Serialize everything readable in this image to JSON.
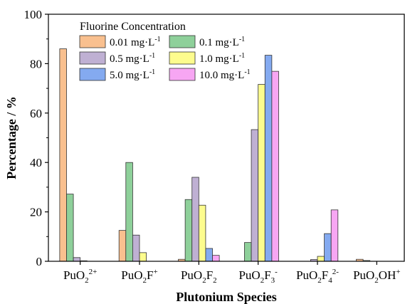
{
  "chart_data": {
    "type": "bar",
    "xlabel": "Plutonium Species",
    "ylabel": "Percentage / %",
    "ylim": [
      0,
      100
    ],
    "yticks": [
      0,
      20,
      40,
      60,
      80,
      100
    ],
    "grid": false,
    "legend_placement": "top-left",
    "legend_title": "Fluorine Concentration",
    "categories": [
      {
        "base": "PuO",
        "parts": [
          {
            "t": "2",
            "s": "sub"
          },
          {
            "t": "2+",
            "s": "sup"
          }
        ]
      },
      {
        "base": "PuO",
        "parts": [
          {
            "t": "2",
            "s": "sub"
          },
          {
            "t": "F",
            "s": "normal"
          },
          {
            "t": "+",
            "s": "sup"
          }
        ]
      },
      {
        "base": "PuO",
        "parts": [
          {
            "t": "2",
            "s": "sub"
          },
          {
            "t": "F",
            "s": "normal"
          },
          {
            "t": "2",
            "s": "sub"
          }
        ]
      },
      {
        "base": "PuO",
        "parts": [
          {
            "t": "2",
            "s": "sub"
          },
          {
            "t": "F",
            "s": "normal"
          },
          {
            "t": "3",
            "s": "sub"
          },
          {
            "t": "-",
            "s": "sup"
          }
        ]
      },
      {
        "base": "PuO",
        "parts": [
          {
            "t": "2",
            "s": "sub"
          },
          {
            "t": "F",
            "s": "normal"
          },
          {
            "t": "4",
            "s": "sub"
          },
          {
            "t": "2-",
            "s": "sup"
          }
        ]
      },
      {
        "base": "PuO",
        "parts": [
          {
            "t": "2",
            "s": "sub"
          },
          {
            "t": "OH",
            "s": "normal"
          },
          {
            "t": "+",
            "s": "sup"
          }
        ]
      }
    ],
    "series": [
      {
        "name": "0.01 mg·L",
        "name_sup": "-1",
        "color": "#f9c08f",
        "values": [
          86,
          12.5,
          0.8,
          0,
          0,
          0.8
        ]
      },
      {
        "name": "0.1 mg·L",
        "name_sup": "-1",
        "color": "#8ed09a",
        "values": [
          27.2,
          40,
          25,
          7.6,
          0,
          0.3
        ]
      },
      {
        "name": "0.5 mg·L",
        "name_sup": "-1",
        "color": "#bfb0d3",
        "values": [
          1.5,
          10.6,
          34,
          53.3,
          0.7,
          0
        ]
      },
      {
        "name": "1.0 mg·L",
        "name_sup": "-1",
        "color": "#fdfc8e",
        "values": [
          0.2,
          3.5,
          22.7,
          71.6,
          2,
          0
        ]
      },
      {
        "name": "5.0 mg·L",
        "name_sup": "-1",
        "color": "#84aaf0",
        "values": [
          0,
          0,
          5.2,
          83.4,
          11.2,
          0
        ]
      },
      {
        "name": "10.0 mg·L",
        "name_sup": "-1",
        "color": "#f7a6f3",
        "values": [
          0,
          0,
          2.4,
          76.9,
          20.8,
          0
        ]
      }
    ]
  }
}
